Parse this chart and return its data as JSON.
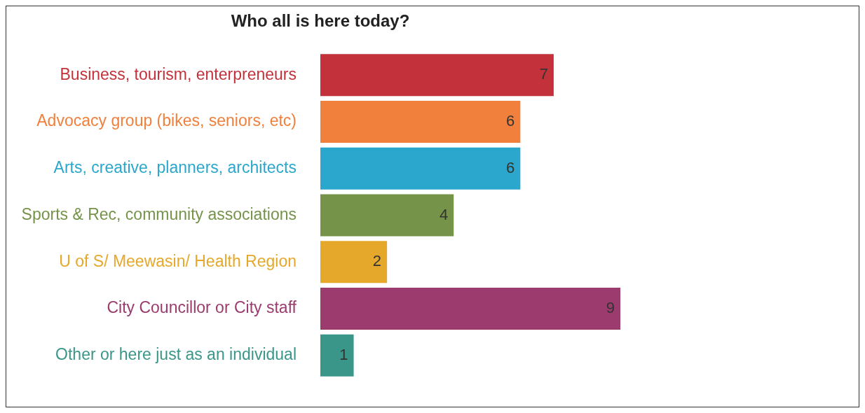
{
  "chart_data": {
    "type": "bar",
    "orientation": "horizontal",
    "title": "Who all is here today?",
    "categories": [
      "Business, tourism, enterpreneurs",
      "Advocacy group (bikes, seniors, etc)",
      "Arts, creative, planners, architects",
      "Sports & Rec, community associations",
      "U of S/ Meewasin/ Health Region",
      "City Councillor or City staff",
      "Other or here just as an individual"
    ],
    "values": [
      7,
      6,
      6,
      4,
      2,
      9,
      1
    ],
    "colors": [
      "#c3323a",
      "#f0803c",
      "#2ba6cc",
      "#76934a",
      "#e6a82b",
      "#9c3b6e",
      "#3a9688"
    ],
    "data_labels": true,
    "legend": false
  }
}
